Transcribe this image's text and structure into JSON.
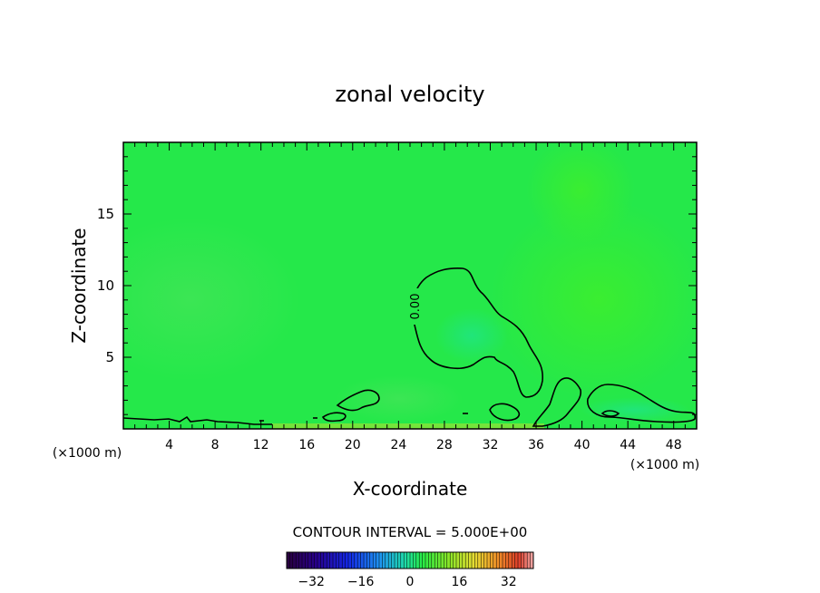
{
  "chart_data": {
    "type": "heatmap",
    "title": "zonal velocity",
    "xlabel": "X-coordinate",
    "ylabel": "Z-coordinate",
    "x_unit_left": "(×1000 m)",
    "x_unit_right": "(×1000 m)",
    "xlim": [
      0,
      50
    ],
    "ylim": [
      0,
      20
    ],
    "x_ticks": [
      4,
      8,
      12,
      16,
      20,
      24,
      28,
      32,
      36,
      40,
      44,
      48
    ],
    "y_ticks": [
      5,
      10,
      15
    ],
    "contour_label": "0.00",
    "contour_interval_text": "CONTOUR INTERVAL = 5.000E+00",
    "colorbar": {
      "range": [
        -40,
        40
      ],
      "ticks": [
        -32,
        -16,
        0,
        16,
        32
      ]
    },
    "contour_levels": [
      0
    ],
    "field_note_color_dominant": "#22ee44",
    "colors": {
      "field": "#25e84a",
      "field_light": "#43e85e",
      "field_bright": "#3df03a",
      "field_cyan": "#1ee488",
      "field_yellow": "#b8e030"
    }
  }
}
